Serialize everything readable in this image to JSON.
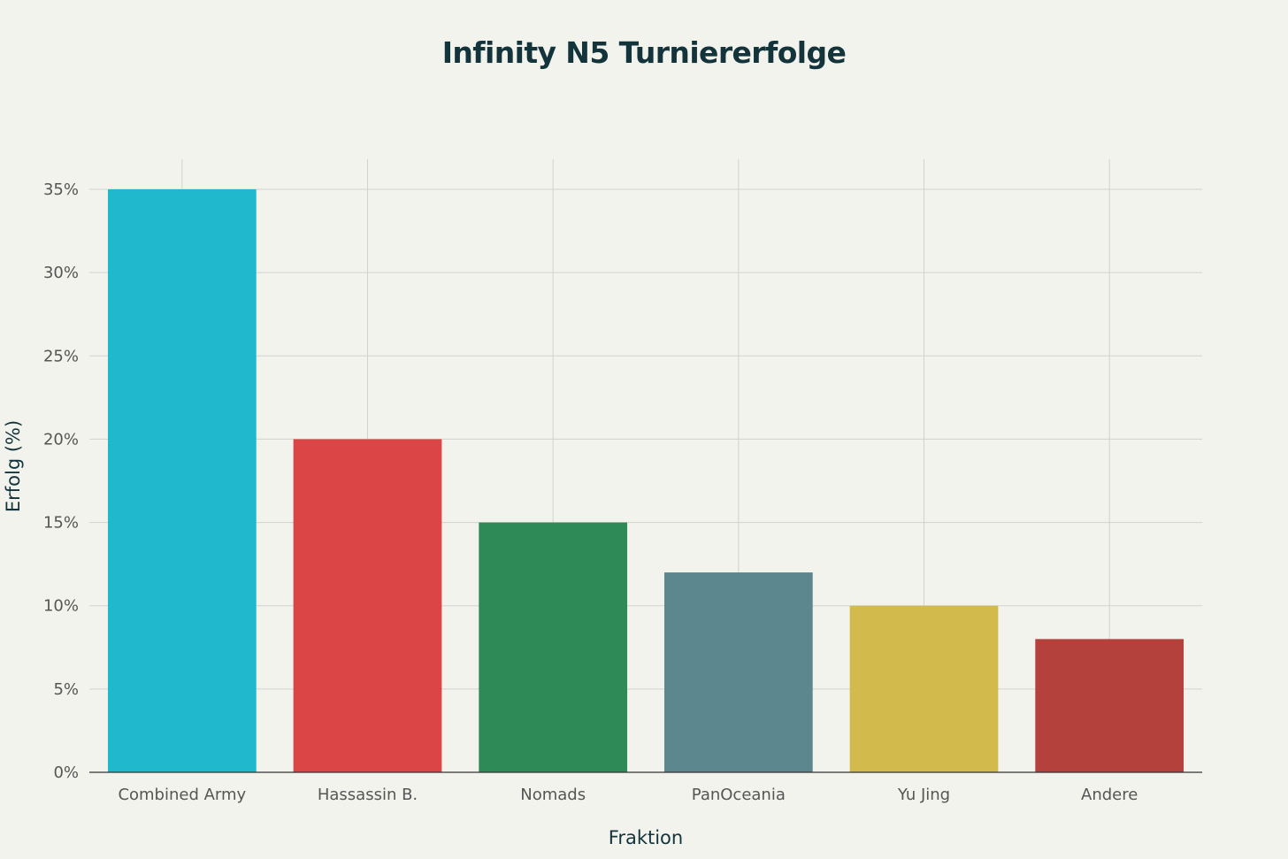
{
  "chart_data": {
    "type": "bar",
    "title": "Infinity N5 Turniererfolge",
    "xlabel": "Fraktion",
    "ylabel": "Erfolg (%)",
    "categories": [
      "Combined Army",
      "Hassassin B.",
      "Nomads",
      "PanOceania",
      "Yu Jing",
      "Andere"
    ],
    "values": [
      35,
      20,
      15,
      12,
      10,
      8
    ],
    "colors": [
      "#1fb8cd",
      "#db4545",
      "#2e8b57",
      "#5d878f",
      "#d2ba4c",
      "#b4413c"
    ],
    "ylim": [
      0,
      35
    ],
    "yticks": [
      0,
      5,
      10,
      15,
      20,
      25,
      30,
      35
    ],
    "ytick_labels": [
      "0%",
      "5%",
      "10%",
      "15%",
      "20%",
      "25%",
      "30%",
      "35%"
    ],
    "grid": true,
    "legend": "none"
  }
}
